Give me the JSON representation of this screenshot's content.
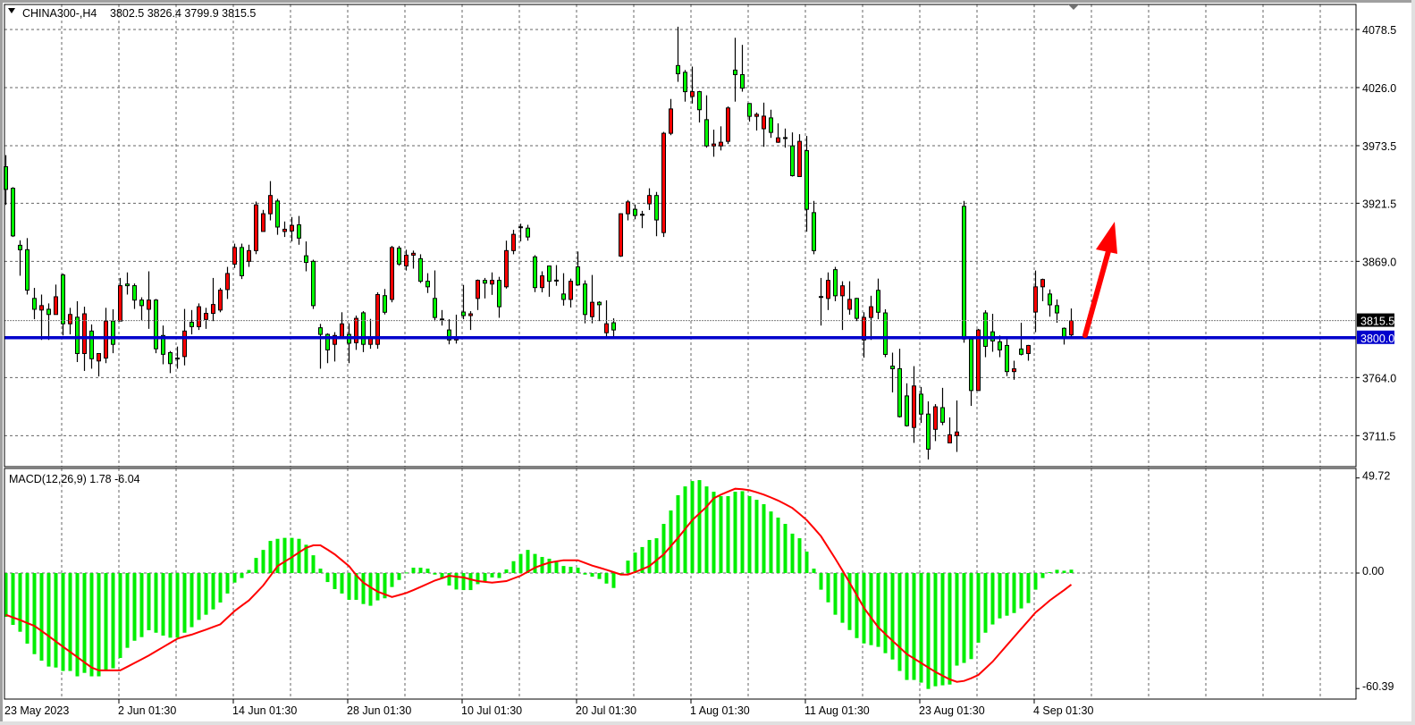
{
  "header": {
    "symbol_timeframe": "CHINA300-,H4",
    "ohlc": "3802.5 3826.4 3799.9 3815.5"
  },
  "macd_label": "MACD(12,26,9) 1.78 -6.04",
  "colors": {
    "bull_candle": "#ff0000",
    "bear_candle": "#00ff00",
    "candle_outline": "#000000",
    "macd_histogram": "#00ee00",
    "macd_signal": "#ff0000",
    "level_line": "#0000cc",
    "bid_line": "#808080",
    "grid": "#666666",
    "arrow": "#ff0000"
  },
  "chart_data": [
    {
      "type": "candlestick",
      "symbol": "CHINA300-",
      "timeframe": "H4",
      "ylim": [
        3683.5,
        4101.1
      ],
      "grid": true,
      "price_ticks": [
        "4078.5",
        "4026.0",
        "3973.5",
        "3921.5",
        "3869.0",
        "3764.0",
        "3711.5"
      ],
      "time_labels": [
        {
          "bar": 0,
          "label": "23 May 2023"
        },
        {
          "bar": 16,
          "label": "2 Jun 01:30"
        },
        {
          "bar": 32,
          "label": "14 Jun 01:30"
        },
        {
          "bar": 48,
          "label": "28 Jun 01:30"
        },
        {
          "bar": 64,
          "label": "10 Jul 01:30"
        },
        {
          "bar": 80,
          "label": "20 Jul 01:30"
        },
        {
          "bar": 96,
          "label": "1 Aug 01:30"
        },
        {
          "bar": 112,
          "label": "11 Aug 01:30"
        },
        {
          "bar": 128,
          "label": "23 Aug 01:30"
        },
        {
          "bar": 144,
          "label": "4 Sep 01:30"
        }
      ],
      "level_line": {
        "value": 3800.0,
        "label": "3800.0"
      },
      "bid_line": {
        "value": 3815.5,
        "label": "3815.5"
      },
      "ohlc_fields": [
        "open",
        "high",
        "low",
        "close"
      ],
      "ohlc": [
        [
          3954.5,
          3965,
          3920,
          3934
        ],
        [
          3935,
          3936,
          3891,
          3892
        ],
        [
          3883.5,
          3888,
          3856,
          3879.5
        ],
        [
          3879.5,
          3890,
          3839,
          3843
        ],
        [
          3835.5,
          3845,
          3816.7,
          3825.7
        ],
        [
          3825,
          3839,
          3798,
          3829
        ],
        [
          3825.7,
          3831,
          3798,
          3821
        ],
        [
          3821,
          3848,
          3821,
          3837
        ],
        [
          3856.7,
          3858,
          3802,
          3812.6
        ],
        [
          3812.6,
          3827,
          3803,
          3821
        ],
        [
          3818.5,
          3833,
          3778,
          3785.7
        ],
        [
          3785.7,
          3828,
          3770,
          3821.6
        ],
        [
          3806,
          3812,
          3772,
          3781
        ],
        [
          3779,
          3786,
          3765,
          3785.7
        ],
        [
          3781.6,
          3827,
          3777,
          3815
        ],
        [
          3815,
          3825.7,
          3786,
          3794
        ],
        [
          3815,
          3854,
          3815,
          3847
        ],
        [
          3848.5,
          3859,
          3839,
          3847
        ],
        [
          3847,
          3849,
          3826,
          3834
        ],
        [
          3834,
          3836.5,
          3816,
          3829
        ],
        [
          3825.7,
          3860,
          3808,
          3834
        ],
        [
          3834,
          3835,
          3786,
          3790
        ],
        [
          3802,
          3811,
          3776,
          3785
        ],
        [
          3786.5,
          3788,
          3768,
          3776.6
        ],
        [
          3781.6,
          3792,
          3772,
          3781.2
        ],
        [
          3783,
          3826,
          3775,
          3806
        ],
        [
          3814,
          3825,
          3803,
          3810
        ],
        [
          3810,
          3831,
          3807,
          3828
        ],
        [
          3816.5,
          3827,
          3808,
          3822
        ],
        [
          3822,
          3854,
          3815,
          3830
        ],
        [
          3825,
          3845,
          3823,
          3843
        ],
        [
          3843.5,
          3864,
          3835,
          3858
        ],
        [
          3866.5,
          3885,
          3863,
          3881.5
        ],
        [
          3881.5,
          3885,
          3853,
          3856
        ],
        [
          3869,
          3884,
          3864,
          3878.7
        ],
        [
          3878.7,
          3923,
          3875.5,
          3920
        ],
        [
          3896,
          3915.5,
          3896,
          3912
        ],
        [
          3912,
          3941.5,
          3906,
          3928.5
        ],
        [
          3923.5,
          3925.5,
          3893,
          3900
        ],
        [
          3896,
          3905,
          3891,
          3898
        ],
        [
          3896.5,
          3909,
          3887,
          3901.5
        ],
        [
          3902,
          3910,
          3884,
          3890
        ],
        [
          3874,
          3887,
          3860,
          3868
        ],
        [
          3869,
          3870.5,
          3826,
          3829
        ],
        [
          3809,
          3812.5,
          3772,
          3803
        ],
        [
          3803,
          3804,
          3777,
          3789
        ],
        [
          3794,
          3805,
          3778.5,
          3802
        ],
        [
          3801,
          3823,
          3800,
          3812.5
        ],
        [
          3803,
          3813,
          3777,
          3795
        ],
        [
          3795.5,
          3820,
          3789,
          3817.5
        ],
        [
          3822.5,
          3824,
          3787,
          3794
        ],
        [
          3794,
          3817,
          3790,
          3800
        ],
        [
          3794,
          3841,
          3790,
          3839
        ],
        [
          3838,
          3844,
          3821,
          3823
        ],
        [
          3834.6,
          3883,
          3832,
          3881.5
        ],
        [
          3881,
          3883,
          3865,
          3866.5
        ],
        [
          3864.8,
          3879.5,
          3860.7,
          3874.6
        ],
        [
          3874.6,
          3878.7,
          3862.4,
          3876.3
        ],
        [
          3871.4,
          3875.4,
          3849.4,
          3851
        ],
        [
          3851,
          3858.3,
          3840.4,
          3846
        ],
        [
          3835.5,
          3860.8,
          3815,
          3818.3
        ],
        [
          3816.9,
          3825,
          3811,
          3816.5
        ],
        [
          3807,
          3816.7,
          3794,
          3798
        ],
        [
          3798,
          3820.8,
          3794.7,
          3801
        ],
        [
          3823.2,
          3847.7,
          3816.7,
          3820
        ],
        [
          3820,
          3824,
          3807,
          3821.6
        ],
        [
          3835.5,
          3852.6,
          3825,
          3851.8
        ],
        [
          3851.8,
          3854,
          3835.5,
          3849.3
        ],
        [
          3848.5,
          3859,
          3838.7,
          3851.8
        ],
        [
          3851.8,
          3855,
          3818,
          3828
        ],
        [
          3846,
          3887.7,
          3844.4,
          3878.7
        ],
        [
          3878.7,
          3897.5,
          3875.4,
          3893.4
        ],
        [
          3900.2,
          3903,
          3887,
          3899.8
        ],
        [
          3899,
          3902,
          3887.7,
          3891
        ],
        [
          3873,
          3874.6,
          3841.2,
          3845.3
        ],
        [
          3845.3,
          3860,
          3841,
          3855.9
        ],
        [
          3864.8,
          3865,
          3837,
          3851
        ],
        [
          3852,
          3865.6,
          3846.9,
          3851.6
        ],
        [
          3839.5,
          3858.3,
          3829,
          3834.6
        ],
        [
          3834.6,
          3853.4,
          3827.3,
          3851
        ],
        [
          3864,
          3877.9,
          3846.9,
          3847.7
        ],
        [
          3848.5,
          3851.8,
          3813,
          3821
        ],
        [
          3819,
          3856.7,
          3813,
          3832
        ],
        [
          3832,
          3833,
          3815,
          3829.8
        ],
        [
          3804.5,
          3833.8,
          3800.4,
          3812.6
        ],
        [
          3813.5,
          3817.5,
          3798.8,
          3807
        ],
        [
          3873.8,
          3912.5,
          3873,
          3912
        ],
        [
          3912,
          3924.4,
          3906,
          3922.7
        ],
        [
          3916,
          3920.3,
          3907,
          3910.5
        ],
        [
          3911.5,
          3914.6,
          3899,
          3911.2
        ],
        [
          3921,
          3935,
          3915.4,
          3928.5
        ],
        [
          3928.5,
          3931.7,
          3891.7,
          3906.4
        ],
        [
          3895,
          3986,
          3891,
          3984.7
        ],
        [
          3984.7,
          4015.7,
          3983,
          4006.7
        ],
        [
          4045.9,
          4081,
          4031.2,
          4038.5
        ],
        [
          4039.8,
          4041.9,
          4013.3,
          4022.3
        ],
        [
          4018,
          4045,
          4011.6,
          4022.3
        ],
        [
          4022.3,
          4023,
          3994.5,
          4006
        ],
        [
          3997,
          4019,
          3971.7,
          3973.3
        ],
        [
          3973.3,
          3988,
          3963.5,
          3975
        ],
        [
          3973.3,
          3991,
          3969.2,
          3976.6
        ],
        [
          3977.4,
          4009,
          3975,
          4007.6
        ],
        [
          4041.8,
          4071,
          4013.3,
          4037.7
        ],
        [
          4037.7,
          4064.6,
          4022.3,
          4025.5
        ],
        [
          4011.6,
          4012,
          3995.3,
          4000
        ],
        [
          4000,
          4003.5,
          3987.2,
          4001.8
        ],
        [
          3988.8,
          4012.4,
          3972.5,
          4000.2
        ],
        [
          3998.6,
          4006,
          3980.6,
          3985.5
        ],
        [
          3976.6,
          3993.7,
          3976,
          3980.6
        ],
        [
          3980.8,
          3989,
          3971.7,
          3980.5
        ],
        [
          3973.3,
          3985.5,
          3945.6,
          3946.4
        ],
        [
          3945.6,
          3983.9,
          3945.6,
          3977.4
        ],
        [
          3969,
          3982.3,
          3895.8,
          3916
        ],
        [
          3913,
          3923.6,
          3875.4,
          3878.7
        ],
        [
          3837.2,
          3854,
          3811,
          3837
        ],
        [
          3835.5,
          3859,
          3825,
          3851.8
        ],
        [
          3861.5,
          3864,
          3833,
          3837.9
        ],
        [
          3837.9,
          3851,
          3807,
          3846.9
        ],
        [
          3825.7,
          3851,
          3820.8,
          3834.6
        ],
        [
          3835.5,
          3836,
          3815,
          3817.5
        ],
        [
          3798,
          3823,
          3782,
          3818.3
        ],
        [
          3818.3,
          3837.9,
          3798,
          3828
        ],
        [
          3842.8,
          3853.4,
          3816.7,
          3823
        ],
        [
          3822.4,
          3825.7,
          3782.4,
          3784.9
        ],
        [
          3774.3,
          3786.5,
          3750.6,
          3772
        ],
        [
          3772,
          3790,
          3727.9,
          3728.7
        ],
        [
          3747.4,
          3758.8,
          3719.7,
          3720.5
        ],
        [
          3718.9,
          3774.3,
          3705,
          3756.4
        ],
        [
          3749,
          3755.5,
          3723,
          3731
        ],
        [
          3731,
          3742.5,
          3690,
          3699.3
        ],
        [
          3717.2,
          3740,
          3706.6,
          3737.6
        ],
        [
          3736.8,
          3754.7,
          3721,
          3723.6
        ],
        [
          3705,
          3728,
          3705,
          3712.3
        ],
        [
          3711.5,
          3743.3,
          3696.8,
          3714.8
        ],
        [
          3918.7,
          3923.6,
          3795.5,
          3798.8
        ],
        [
          3798.8,
          3800,
          3738.4,
          3752.3
        ],
        [
          3752.3,
          3808,
          3752,
          3807
        ],
        [
          3822.4,
          3824.8,
          3782.4,
          3792.2
        ],
        [
          3805.3,
          3821.6,
          3787.3,
          3797.1
        ],
        [
          3796.3,
          3802,
          3782.4,
          3789
        ],
        [
          3793,
          3800.4,
          3765.3,
          3769.4
        ],
        [
          3769.4,
          3779.2,
          3762,
          3771.9
        ],
        [
          3789.8,
          3813.5,
          3784,
          3785
        ],
        [
          3785.7,
          3793.5,
          3779.2,
          3793
        ],
        [
          3823.2,
          3860.7,
          3805,
          3846
        ],
        [
          3846,
          3853.4,
          3833,
          3852.6
        ],
        [
          3839.5,
          3843.6,
          3819,
          3829.7
        ],
        [
          3829,
          3834.6,
          3813.5,
          3822.4
        ],
        [
          3808.5,
          3809.3,
          3793.8,
          3800.4
        ],
        [
          3802.5,
          3826.4,
          3799.9,
          3815.5
        ]
      ]
    },
    {
      "type": "bar+line",
      "indicator": "MACD(12,26,9)",
      "ylim": [
        -65.9,
        54.7
      ],
      "ticks": [
        "49.72",
        "0.00",
        "-60.39"
      ],
      "tick_values": [
        49.72,
        0,
        -60.39
      ],
      "histogram": [
        -22.9,
        -27.1,
        -30.7,
        -36.9,
        -42.4,
        -45.8,
        -48.9,
        -49.4,
        -51.2,
        -51.2,
        -54.0,
        -52.2,
        -54.0,
        -54.0,
        -50.9,
        -49.8,
        -44.4,
        -39.1,
        -35.4,
        -33.5,
        -29.9,
        -31.2,
        -32.7,
        -33.8,
        -33.8,
        -31.2,
        -28.3,
        -24.5,
        -21.8,
        -19.0,
        -15.4,
        -10.7,
        -5.0,
        -2.6,
        1.6,
        7.9,
        12.1,
        16.8,
        17.9,
        18.4,
        18.4,
        17.9,
        14.8,
        9.3,
        2.3,
        -4.7,
        -8.4,
        -10.7,
        -14.0,
        -14.0,
        -16.2,
        -17.1,
        -14.3,
        -13.2,
        -7.3,
        -3.6,
        0.3,
        2.8,
        2.8,
        2.3,
        -0.8,
        -3.0,
        -6.5,
        -8.6,
        -8.9,
        -8.9,
        -5.8,
        -4.2,
        -2.3,
        -2.6,
        1.9,
        6.2,
        10.0,
        12.1,
        10.0,
        8.4,
        7.5,
        5.6,
        3.7,
        3.3,
        2.8,
        -0.8,
        -1.9,
        -3.1,
        -5.5,
        -7.8,
        -0.5,
        6.5,
        10.7,
        13.6,
        17.3,
        18.2,
        25.7,
        32.7,
        40.7,
        45.3,
        48.1,
        48.6,
        45.3,
        42.5,
        40.2,
        40.2,
        42.5,
        42.8,
        40.2,
        38.3,
        36.0,
        32.2,
        29.0,
        25.7,
        20.6,
        18.2,
        11.2,
        2.3,
        -8.7,
        -15.3,
        -21.8,
        -26.0,
        -29.8,
        -34.0,
        -36.8,
        -37.7,
        -38.6,
        -41.9,
        -45.2,
        -51.2,
        -55.9,
        -55.9,
        -57.3,
        -60.6,
        -59.2,
        -58.7,
        -58.3,
        -48.4,
        -47.0,
        -45.0,
        -36.4,
        -31.2,
        -26.9,
        -23.7,
        -22.3,
        -20.9,
        -18.5,
        -15.7,
        -8.7,
        -2.6,
        0.5,
        1.7,
        1.2,
        1.78
      ],
      "signal": [
        -21.8,
        -23.2,
        -24.6,
        -26.1,
        -27.6,
        -30.3,
        -33.0,
        -35.8,
        -38.5,
        -41.2,
        -44.0,
        -46.7,
        -49.4,
        -50.9,
        -50.9,
        -50.9,
        -50.9,
        -49.0,
        -47.0,
        -45.1,
        -43.1,
        -40.9,
        -38.7,
        -36.5,
        -34.3,
        -33.2,
        -32.2,
        -30.9,
        -29.6,
        -28.2,
        -26.8,
        -23.3,
        -19.8,
        -17.0,
        -14.3,
        -10.4,
        -6.5,
        -1.5,
        3.6,
        6.0,
        8.3,
        10.8,
        13.2,
        14.5,
        14.5,
        12.2,
        9.8,
        6.7,
        3.6,
        -1.1,
        -5.0,
        -7.4,
        -9.7,
        -11.1,
        -12.5,
        -11.5,
        -10.4,
        -8.9,
        -7.3,
        -5.6,
        -3.9,
        -2.7,
        -1.4,
        -1.9,
        -2.3,
        -3.3,
        -4.2,
        -4.6,
        -5.0,
        -4.6,
        -4.2,
        -2.8,
        -1.4,
        0.7,
        2.8,
        4.2,
        5.5,
        6.1,
        6.7,
        6.7,
        6.7,
        5.3,
        3.9,
        2.8,
        1.7,
        0.5,
        -0.8,
        -0.8,
        0.5,
        2.0,
        3.6,
        6.7,
        9.8,
        14.1,
        18.4,
        23.0,
        27.7,
        31.2,
        34.7,
        39.1,
        41.0,
        42.6,
        44.1,
        43.8,
        43.3,
        42.2,
        41.0,
        39.5,
        37.9,
        36.0,
        34.0,
        30.9,
        27.7,
        23.5,
        19.2,
        13.4,
        7.5,
        1.3,
        -5.0,
        -11.6,
        -18.2,
        -23.3,
        -28.3,
        -31.9,
        -35.4,
        -38.9,
        -42.4,
        -44.7,
        -47.0,
        -49.4,
        -51.7,
        -53.7,
        -55.6,
        -56.9,
        -56.4,
        -55.0,
        -53.3,
        -49.8,
        -46.3,
        -42.0,
        -37.7,
        -33.4,
        -29.1,
        -24.9,
        -20.6,
        -17.5,
        -14.3,
        -11.6,
        -8.9,
        -6.04
      ]
    }
  ]
}
